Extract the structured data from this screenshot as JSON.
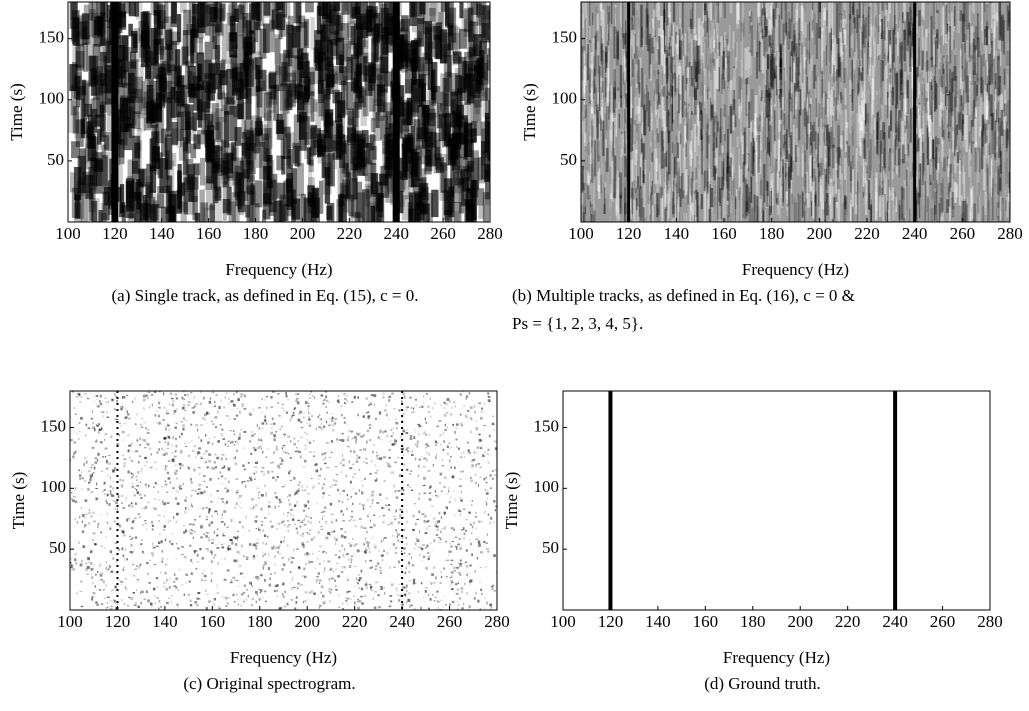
{
  "chart_data": [
    {
      "type": "heatmap",
      "xlabel": "Frequency (Hz)",
      "ylabel": "Time (s)",
      "xlim": [
        100,
        280
      ],
      "ylim": [
        0,
        180
      ],
      "xticks": [
        100,
        120,
        140,
        160,
        180,
        200,
        220,
        240,
        260,
        280
      ],
      "yticks": [
        50,
        100,
        150
      ],
      "tracks_x": [
        120,
        240
      ],
      "caption": "(a) Single track, as defined in Eq. (15), c = 0."
    },
    {
      "type": "heatmap",
      "xlabel": "Frequency (Hz)",
      "ylabel": "Time (s)",
      "xlim": [
        100,
        280
      ],
      "ylim": [
        0,
        180
      ],
      "xticks": [
        100,
        120,
        140,
        160,
        180,
        200,
        220,
        240,
        260,
        280
      ],
      "yticks": [
        50,
        100,
        150
      ],
      "tracks_x": [
        120,
        240
      ],
      "caption": [
        "(b) Multiple tracks, as defined in Eq. (16), c = 0 &",
        "Ps = {1, 2, 3, 4, 5}."
      ]
    },
    {
      "type": "heatmap",
      "xlabel": "Frequency (Hz)",
      "ylabel": "Time (s)",
      "xlim": [
        100,
        280
      ],
      "ylim": [
        0,
        180
      ],
      "xticks": [
        100,
        120,
        140,
        160,
        180,
        200,
        220,
        240,
        260,
        280
      ],
      "yticks": [
        50,
        100,
        150
      ],
      "tracks_x": [
        120,
        240
      ],
      "caption": "(c) Original spectrogram."
    },
    {
      "type": "heatmap",
      "xlabel": "Frequency (Hz)",
      "ylabel": "Time (s)",
      "xlim": [
        100,
        280
      ],
      "ylim": [
        0,
        180
      ],
      "xticks": [
        100,
        120,
        140,
        160,
        180,
        200,
        220,
        240,
        260,
        280
      ],
      "yticks": [
        50,
        100,
        150
      ],
      "tracks_x": [
        120,
        240
      ],
      "caption": "(d) Ground truth."
    }
  ]
}
